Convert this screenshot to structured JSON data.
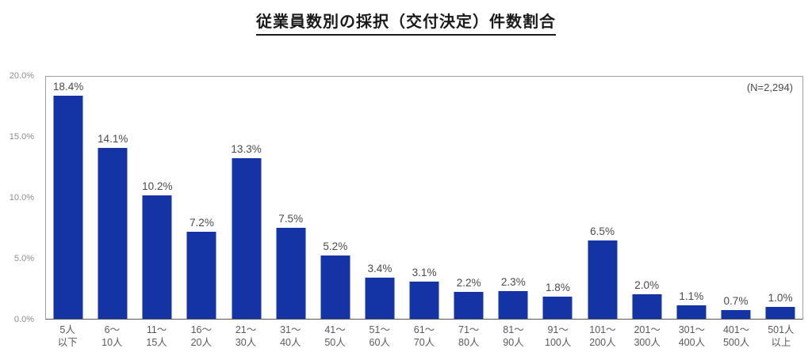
{
  "title": "従業員数別の採択（交付決定）件数割合",
  "annotation": "(N=2,294)",
  "colors": {
    "bar": "#1434a6",
    "plot_border": "#9e9e9e",
    "axis_line": "#595959",
    "ytick_text": "#8c8c8c",
    "xtick_text": "#595959",
    "value_text": "#4a4a4a",
    "title_text": "#1a1a1a"
  },
  "chart_data": {
    "type": "bar",
    "title": "従業員数別の採択（交付決定）件数割合",
    "annotation": "(N=2,294)",
    "categories": [
      "5人\n以下",
      "6～\n10人",
      "11～\n15人",
      "16～\n20人",
      "21～\n30人",
      "31～\n40人",
      "41～\n50人",
      "51～\n60人",
      "61～\n70人",
      "71～\n80人",
      "81～\n90人",
      "91～\n100人",
      "101～\n200人",
      "201～\n300人",
      "301～\n400人",
      "401～\n500人",
      "501人\n以上"
    ],
    "values": [
      18.4,
      14.1,
      10.2,
      7.2,
      13.3,
      7.5,
      5.2,
      3.4,
      3.1,
      2.2,
      2.3,
      1.8,
      6.5,
      2.0,
      1.1,
      0.7,
      1.0
    ],
    "value_labels": [
      "18.4%",
      "14.1%",
      "10.2%",
      "7.2%",
      "13.3%",
      "7.5%",
      "5.2%",
      "3.4%",
      "3.1%",
      "2.2%",
      "2.3%",
      "1.8%",
      "6.5%",
      "2.0%",
      "1.1%",
      "0.7%",
      "1.0%"
    ],
    "yticks": [
      {
        "value": 0,
        "label": "0.0%"
      },
      {
        "value": 5,
        "label": "5.0%"
      },
      {
        "value": 10,
        "label": "10.0%"
      },
      {
        "value": 15,
        "label": "15.0%"
      },
      {
        "value": 20,
        "label": "20.0%"
      }
    ],
    "ylim": [
      0,
      20
    ],
    "xlabel": "",
    "ylabel": "",
    "grid": false,
    "legend": null
  }
}
